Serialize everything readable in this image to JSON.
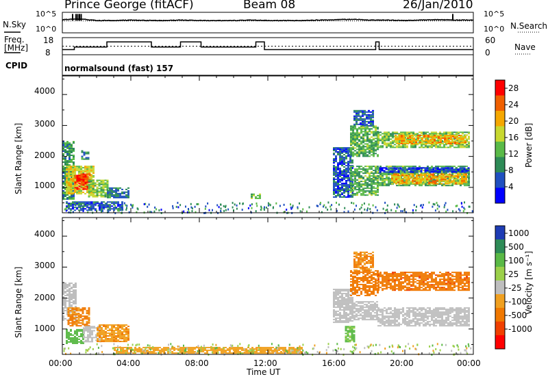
{
  "header": {
    "station": "Prince George (fitACF)",
    "beam": "Beam 08",
    "date": "26/Jan/2010"
  },
  "sky_panel": {
    "left_label": "N.Sky",
    "left_ticks": [
      "10^5",
      "10^0"
    ],
    "right_label": "N.Search",
    "right_ticks": [
      "10^5",
      "10^0"
    ]
  },
  "freq_panel": {
    "left_label_line1": "Freq.",
    "left_label_line2": "[MHz]",
    "left_ticks": [
      "18",
      "8"
    ],
    "right_label": "Nave",
    "right_ticks": [
      "60",
      "0"
    ]
  },
  "cpid_panel": {
    "label": "CPID",
    "text": "normalsound (fast) 157"
  },
  "x_axis": {
    "ticks": [
      "00:00",
      "04:00",
      "08:00",
      "12:00",
      "16:00",
      "20:00",
      "00:00"
    ],
    "label": "Time UT"
  },
  "colors": {
    "power_scale": [
      "#0000ff",
      "#2050c0",
      "#2e8b57",
      "#5aba48",
      "#c8d830",
      "#f5a700",
      "#f06000",
      "#ff0000"
    ],
    "velocity_scale": [
      "#1e3cb4",
      "#2e8b57",
      "#5ab946",
      "#9bd04a",
      "#bebebe",
      "#f0a020",
      "#f07800",
      "#f04000",
      "#ff0000"
    ]
  },
  "chart_data": [
    {
      "type": "line",
      "panel": "sky-noise",
      "series": [
        {
          "name": "N.Sky",
          "x_hours": [
            0,
            1,
            2,
            3,
            4,
            5,
            6,
            7,
            8,
            9,
            10,
            11,
            12,
            13,
            14,
            15,
            16,
            17,
            18,
            19,
            20,
            21,
            22,
            23,
            24
          ],
          "log_values": [
            3.2,
            3.4,
            3.0,
            3.0,
            3.1,
            3.0,
            3.0,
            3.1,
            3.0,
            3.0,
            3.0,
            3.1,
            3.0,
            3.0,
            3.0,
            3.1,
            3.2,
            3.3,
            3.1,
            3.1,
            3.0,
            3.1,
            3.2,
            3.1,
            3.1
          ]
        },
        {
          "name": "N.Search",
          "x_hours": [
            0,
            6,
            12,
            18,
            24
          ],
          "log_values": [
            2.9,
            2.9,
            2.9,
            2.9,
            2.9
          ]
        }
      ],
      "ylim": [
        0,
        5
      ]
    },
    {
      "type": "line",
      "panel": "frequency",
      "series": [
        {
          "name": "Freq.",
          "steps": [
            [
              0.0,
              0.7,
              11
            ],
            [
              0.7,
              2.6,
              12.5
            ],
            [
              2.6,
              5.2,
              15.5
            ],
            [
              5.2,
              6.9,
              12.5
            ],
            [
              6.9,
              8.1,
              15.5
            ],
            [
              8.1,
              11.3,
              12.5
            ],
            [
              11.3,
              11.8,
              15.5
            ],
            [
              11.8,
              18.3,
              11
            ],
            [
              18.3,
              18.5,
              15.5
            ],
            [
              18.5,
              24,
              11
            ]
          ]
        },
        {
          "name": "Nave",
          "x_hours": [
            0,
            24
          ],
          "values": [
            30,
            30
          ]
        }
      ],
      "ylim": [
        8,
        18
      ],
      "ylim_right": [
        0,
        60
      ]
    },
    {
      "type": "heatmap",
      "panel": "power",
      "xlabel": "",
      "ylabel": "Slant Range [km]",
      "xlim_hours": [
        0,
        24
      ],
      "ylim": [
        180,
        4600
      ],
      "yticks": [
        1000,
        2000,
        3000,
        4000
      ],
      "colorbar": {
        "label": "Power [dB]",
        "ticks": [
          4,
          8,
          12,
          16,
          20,
          24,
          28
        ],
        "range": [
          0,
          30
        ]
      },
      "regions": [
        {
          "t0": 0.0,
          "t1": 0.7,
          "r0": 600,
          "r1": 2500,
          "v": 10
        },
        {
          "t0": 0.2,
          "t1": 1.8,
          "r0": 800,
          "r1": 1700,
          "v": 18
        },
        {
          "t0": 0.7,
          "t1": 1.6,
          "r0": 950,
          "r1": 1450,
          "v": 26
        },
        {
          "t0": 1.5,
          "t1": 2.7,
          "r0": 700,
          "r1": 1250,
          "v": 14
        },
        {
          "t0": 2.6,
          "t1": 3.9,
          "r0": 650,
          "r1": 1000,
          "v": 8
        },
        {
          "t0": 0.2,
          "t1": 3.5,
          "r0": 250,
          "r1": 550,
          "v": 6
        },
        {
          "t0": 1.1,
          "t1": 1.5,
          "r0": 1900,
          "r1": 2200,
          "v": 8
        },
        {
          "t0": 11.0,
          "t1": 11.5,
          "r0": 650,
          "r1": 800,
          "v": 12
        },
        {
          "t0": 15.8,
          "t1": 16.9,
          "r0": 700,
          "r1": 2300,
          "v": 6
        },
        {
          "t0": 16.8,
          "t1": 18.4,
          "r0": 750,
          "r1": 1700,
          "v": 12
        },
        {
          "t0": 16.8,
          "t1": 18.4,
          "r0": 2000,
          "r1": 3000,
          "v": 12
        },
        {
          "t0": 17.0,
          "t1": 18.2,
          "r0": 3000,
          "r1": 3500,
          "v": 6
        },
        {
          "t0": 18.4,
          "t1": 23.7,
          "r0": 1050,
          "r1": 1700,
          "v": 12
        },
        {
          "t0": 19.2,
          "t1": 23.6,
          "r0": 1100,
          "r1": 1450,
          "v": 20
        },
        {
          "t0": 18.4,
          "t1": 23.7,
          "r0": 2300,
          "r1": 2800,
          "v": 14
        },
        {
          "t0": 19.4,
          "t1": 23.6,
          "r0": 2400,
          "r1": 2700,
          "v": 20
        },
        {
          "t0": 18.5,
          "t1": 23.7,
          "r0": 1500,
          "r1": 1650,
          "v": 4
        }
      ]
    },
    {
      "type": "heatmap",
      "panel": "velocity",
      "xlabel": "Time UT",
      "ylabel": "Slant Range [km]",
      "xlim_hours": [
        0,
        24
      ],
      "ylim": [
        180,
        4600
      ],
      "yticks": [
        1000,
        2000,
        3000,
        4000
      ],
      "colorbar": {
        "label": "Velocity [m s⁻¹]",
        "ticks": [
          1000,
          500,
          100,
          25,
          -25,
          -100,
          -500,
          -1000
        ]
      },
      "regions": [
        {
          "t0": 0.0,
          "t1": 0.8,
          "r0": 1300,
          "r1": 2500,
          "v": 0
        },
        {
          "t0": 0.3,
          "t1": 1.6,
          "r0": 1100,
          "r1": 1700,
          "v": -120
        },
        {
          "t0": 0.2,
          "t1": 1.2,
          "r0": 550,
          "r1": 1000,
          "v": 150
        },
        {
          "t0": 1.2,
          "t1": 2.2,
          "r0": 600,
          "r1": 1100,
          "v": 0
        },
        {
          "t0": 2.0,
          "t1": 3.9,
          "r0": 600,
          "r1": 1150,
          "v": -90
        },
        {
          "t0": 3.0,
          "t1": 14.0,
          "r0": 220,
          "r1": 420,
          "v": -60
        },
        {
          "t0": 15.8,
          "t1": 16.9,
          "r0": 1200,
          "r1": 2300,
          "v": 0
        },
        {
          "t0": 16.5,
          "t1": 17.0,
          "r0": 600,
          "r1": 1100,
          "v": 120
        },
        {
          "t0": 16.8,
          "t1": 18.4,
          "r0": 2100,
          "r1": 2900,
          "v": -200
        },
        {
          "t0": 17.0,
          "t1": 18.2,
          "r0": 2900,
          "r1": 3500,
          "v": -110
        },
        {
          "t0": 18.4,
          "t1": 23.7,
          "r0": 2250,
          "r1": 2850,
          "v": -400
        },
        {
          "t0": 18.4,
          "t1": 23.7,
          "r0": 1100,
          "r1": 1700,
          "v": 0
        },
        {
          "t0": 17.0,
          "t1": 18.4,
          "r0": 1300,
          "r1": 1900,
          "v": 0
        }
      ]
    }
  ]
}
